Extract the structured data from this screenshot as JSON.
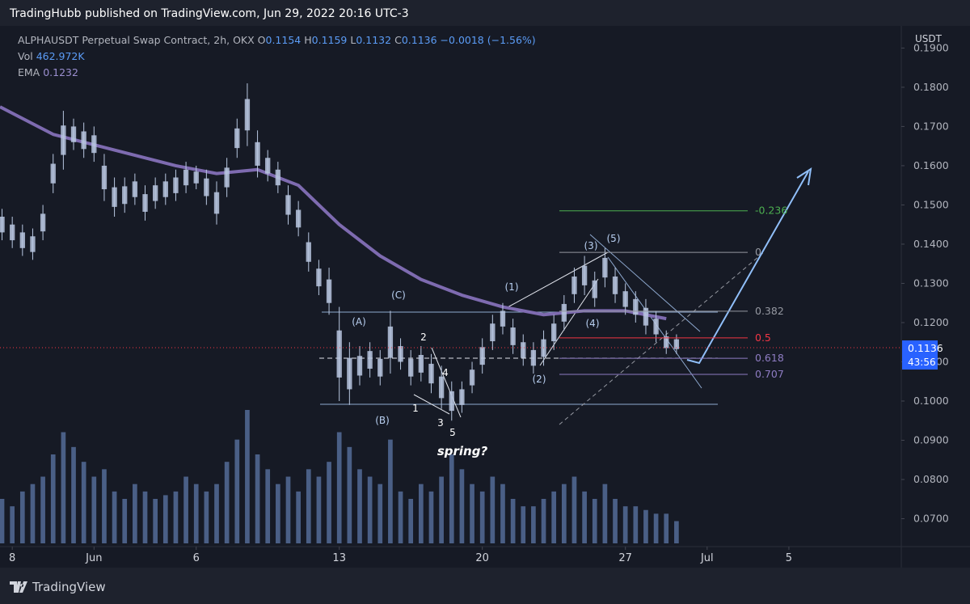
{
  "chart_data": {
    "type": "candlestick",
    "title": "TradingHubb published on TradingView.com, Jun 29, 2022 20:16 UTC-3",
    "symbol": "ALPHAUSDT Perpetual Swap Contract, 2h, OKX",
    "ohlc": [
      "O",
      "0.1154",
      "H",
      "0.1159",
      "L",
      "0.1132",
      "C",
      "0.1136",
      "−0.0018 (−1.56%)"
    ],
    "vol_label": "Vol",
    "vol_value": "462.972K",
    "ema_label": "EMA",
    "ema_value": "0.1232",
    "currency": "USDT",
    "last_price": 0.1136,
    "countdown": "43:56",
    "bar_color": "#b8c7e0",
    "volume_color": "#4a5f86",
    "ema_color": "#7e6bb0",
    "x": [
      -0.5,
      0,
      0.5,
      1,
      1.5,
      2,
      2.5,
      3,
      3.5,
      4,
      4.5,
      5,
      5.5,
      6,
      6.5,
      7,
      7.5,
      8,
      8.5,
      9,
      9.5,
      10,
      10.5,
      11,
      11.5,
      12,
      12.5,
      13,
      13.5,
      14,
      14.5,
      15,
      15.5,
      16,
      16.5,
      17,
      17.5,
      18,
      18.5,
      19,
      19.5,
      20,
      20.5,
      21,
      21.5,
      22,
      22.5,
      23,
      23.5,
      24,
      24.5,
      25,
      25.5,
      26,
      26.5,
      27,
      27.5,
      28,
      28.5,
      29,
      29.5,
      30,
      30.5,
      31,
      31.5,
      32,
      32.5
    ],
    "high": [
      0.149,
      0.147,
      0.145,
      0.144,
      0.15,
      0.163,
      0.174,
      0.172,
      0.171,
      0.17,
      0.163,
      0.157,
      0.157,
      0.158,
      0.155,
      0.157,
      0.158,
      0.159,
      0.161,
      0.16,
      0.159,
      0.156,
      0.162,
      0.172,
      0.181,
      0.169,
      0.164,
      0.161,
      0.155,
      0.151,
      0.143,
      0.136,
      0.134,
      0.124,
      0.115,
      0.114,
      0.115,
      0.113,
      0.123,
      0.116,
      0.113,
      0.114,
      0.112,
      0.109,
      0.105,
      0.105,
      0.11,
      0.116,
      0.122,
      0.125,
      0.121,
      0.117,
      0.115,
      0.118,
      0.122,
      0.127,
      0.134,
      0.137,
      0.133,
      0.139,
      0.134,
      0.13,
      0.128,
      0.126,
      0.123,
      0.118,
      0.117
    ],
    "low": [
      0.141,
      0.139,
      0.137,
      0.136,
      0.141,
      0.153,
      0.159,
      0.164,
      0.162,
      0.161,
      0.151,
      0.147,
      0.148,
      0.15,
      0.146,
      0.149,
      0.15,
      0.151,
      0.153,
      0.154,
      0.15,
      0.145,
      0.152,
      0.162,
      0.165,
      0.157,
      0.156,
      0.153,
      0.145,
      0.142,
      0.133,
      0.127,
      0.122,
      0.1,
      0.099,
      0.104,
      0.106,
      0.104,
      0.107,
      0.108,
      0.104,
      0.105,
      0.102,
      0.098,
      0.095,
      0.097,
      0.102,
      0.107,
      0.113,
      0.117,
      0.112,
      0.109,
      0.107,
      0.109,
      0.113,
      0.118,
      0.125,
      0.127,
      0.124,
      0.129,
      0.125,
      0.122,
      0.12,
      0.117,
      0.115,
      0.112,
      0.112
    ],
    "volume": [
      600,
      500,
      700,
      800,
      900,
      1200,
      1500,
      1300,
      1100,
      900,
      1000,
      700,
      600,
      800,
      700,
      600,
      650,
      700,
      900,
      800,
      700,
      800,
      1100,
      1400,
      1800,
      1200,
      1000,
      800,
      900,
      700,
      1000,
      900,
      1100,
      1500,
      1300,
      1000,
      900,
      800,
      1400,
      700,
      600,
      800,
      700,
      900,
      1200,
      1000,
      800,
      700,
      900,
      800,
      600,
      500,
      500,
      600,
      700,
      800,
      900,
      700,
      600,
      800,
      600,
      500,
      500,
      450,
      400,
      400,
      300
    ],
    "ema_x": [
      -0.6,
      2,
      5,
      8,
      10,
      12,
      14,
      16,
      18,
      20,
      22,
      24,
      26,
      28,
      30,
      32
    ],
    "ema": [
      0.175,
      0.168,
      0.164,
      0.16,
      0.158,
      0.159,
      0.155,
      0.145,
      0.137,
      0.131,
      0.127,
      0.124,
      0.122,
      0.123,
      0.123,
      0.121
    ],
    "fib": [
      {
        "label": "-0.236",
        "price": 0.1485,
        "color": "#4caf50"
      },
      {
        "label": "0",
        "price": 0.1379,
        "color": "#9598a1"
      },
      {
        "label": "0.382",
        "price": 0.1229,
        "color": "#9598a1"
      },
      {
        "label": "0.5",
        "price": 0.1161,
        "color": "#f23645"
      },
      {
        "label": "0.618",
        "price": 0.1109,
        "color": "#8e7cc3"
      },
      {
        "label": "0.707",
        "price": 0.1068,
        "color": "#8e7cc3"
      }
    ],
    "annotations": [
      "(A)",
      "(B)",
      "(C)",
      "1",
      "2",
      "3",
      "4",
      "5",
      "(1)",
      "(2)",
      "(3)",
      "(4)",
      "(5)",
      "spring?"
    ],
    "xlim": [
      -0.6,
      43.5
    ],
    "xticks": [
      {
        "value": 0,
        "label": "8"
      },
      {
        "value": 4,
        "label": "Jun"
      },
      {
        "value": 9,
        "label": "6"
      },
      {
        "value": 16,
        "label": "13"
      },
      {
        "value": 23,
        "label": "20"
      },
      {
        "value": 30,
        "label": "27"
      },
      {
        "value": 34,
        "label": "Jul"
      },
      {
        "value": 38,
        "label": "5"
      }
    ],
    "ylim": [
      0.0631,
      0.194
    ],
    "yticks": [
      {
        "value": 0.07,
        "label": "0.0700"
      },
      {
        "value": 0.08,
        "label": "0.0800"
      },
      {
        "value": 0.09,
        "label": "0.0900"
      },
      {
        "value": 0.1,
        "label": "0.1000"
      },
      {
        "value": 0.11,
        "label": "0.1100"
      },
      {
        "value": 0.12,
        "label": "0.1200"
      },
      {
        "value": 0.13,
        "label": "0.1300"
      },
      {
        "value": 0.14,
        "label": "0.1400"
      },
      {
        "value": 0.15,
        "label": "0.1500"
      },
      {
        "value": 0.16,
        "label": "0.1600"
      },
      {
        "value": 0.17,
        "label": "0.1700"
      },
      {
        "value": 0.18,
        "label": "0.1800"
      },
      {
        "value": 0.19,
        "label": "0.1900"
      }
    ]
  }
}
